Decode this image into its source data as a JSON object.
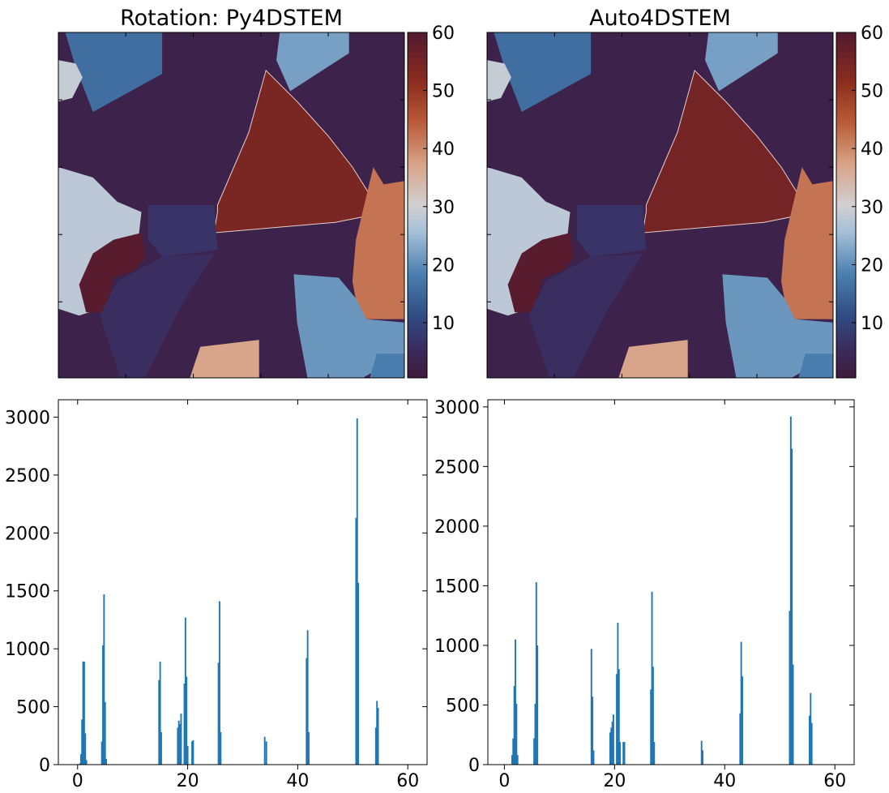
{
  "chart_data": [
    {
      "type": "heatmap",
      "title": "Rotation: Py4DSTEM",
      "colorbar": {
        "ticks": [
          10,
          20,
          30,
          40,
          50,
          60
        ],
        "range": [
          0.5,
          60
        ]
      },
      "regions": [
        {
          "name": "background",
          "value": 3
        },
        {
          "name": "top-left-blue",
          "value": 16
        },
        {
          "name": "top-center-light-blue",
          "value": 22
        },
        {
          "name": "left-edge-gray",
          "value": 29
        },
        {
          "name": "central-triangle",
          "value": 54
        },
        {
          "name": "left-gray",
          "value": 28
        },
        {
          "name": "left-dark-red",
          "value": 59
        },
        {
          "name": "center-dark-purple",
          "value": 7
        },
        {
          "name": "lower-dark-purple",
          "value": 6
        },
        {
          "name": "right-orange",
          "value": 42
        },
        {
          "name": "lower-right-light-blue",
          "value": 21
        },
        {
          "name": "bottom-tan",
          "value": 37
        },
        {
          "name": "bottom-right-mid-blue",
          "value": 18
        }
      ]
    },
    {
      "type": "heatmap",
      "title": "Auto4DSTEM",
      "colorbar": {
        "ticks": [
          10,
          20,
          30,
          40,
          50,
          60
        ],
        "range": [
          0.5,
          60
        ]
      },
      "regions": [
        {
          "name": "background",
          "value": 3
        },
        {
          "name": "top-left-blue",
          "value": 16
        },
        {
          "name": "top-center-light-blue",
          "value": 22
        },
        {
          "name": "left-edge-gray",
          "value": 29
        },
        {
          "name": "central-triangle",
          "value": 55
        },
        {
          "name": "left-gray",
          "value": 28
        },
        {
          "name": "left-dark-red",
          "value": 59
        },
        {
          "name": "center-dark-purple",
          "value": 7
        },
        {
          "name": "lower-dark-purple",
          "value": 6
        },
        {
          "name": "right-orange",
          "value": 42
        },
        {
          "name": "lower-right-light-blue",
          "value": 21
        },
        {
          "name": "bottom-tan",
          "value": 37
        },
        {
          "name": "bottom-right-mid-blue",
          "value": 18
        }
      ]
    },
    {
      "type": "bar",
      "xlim": [
        -3.5,
        63.5
      ],
      "ylim": [
        0,
        3150
      ],
      "xticks": [
        0,
        20,
        40,
        60
      ],
      "yticks": [
        0,
        500,
        1000,
        1500,
        2000,
        2500,
        3000
      ],
      "bin_width": 0.28,
      "peaks": [
        {
          "x": 0.4,
          "v": 10
        },
        {
          "x": 0.6,
          "v": 90
        },
        {
          "x": 0.8,
          "v": 390
        },
        {
          "x": 1.0,
          "v": 890
        },
        {
          "x": 1.2,
          "v": 890
        },
        {
          "x": 1.4,
          "v": 270
        },
        {
          "x": 1.6,
          "v": 40
        },
        {
          "x": 4.4,
          "v": 200
        },
        {
          "x": 4.6,
          "v": 1030
        },
        {
          "x": 4.8,
          "v": 1470
        },
        {
          "x": 5.0,
          "v": 540
        },
        {
          "x": 5.2,
          "v": 50
        },
        {
          "x": 14.8,
          "v": 730
        },
        {
          "x": 15.0,
          "v": 890
        },
        {
          "x": 15.2,
          "v": 280
        },
        {
          "x": 18.2,
          "v": 320
        },
        {
          "x": 18.4,
          "v": 380
        },
        {
          "x": 18.6,
          "v": 350
        },
        {
          "x": 18.8,
          "v": 440
        },
        {
          "x": 19.4,
          "v": 700
        },
        {
          "x": 19.6,
          "v": 1270
        },
        {
          "x": 19.8,
          "v": 760
        },
        {
          "x": 20.0,
          "v": 160
        },
        {
          "x": 20.8,
          "v": 200
        },
        {
          "x": 21.0,
          "v": 210
        },
        {
          "x": 25.6,
          "v": 880
        },
        {
          "x": 25.8,
          "v": 1410
        },
        {
          "x": 26.0,
          "v": 280
        },
        {
          "x": 34.0,
          "v": 240
        },
        {
          "x": 34.3,
          "v": 200
        },
        {
          "x": 41.6,
          "v": 920
        },
        {
          "x": 41.8,
          "v": 1160
        },
        {
          "x": 42.0,
          "v": 280
        },
        {
          "x": 50.6,
          "v": 2130
        },
        {
          "x": 50.8,
          "v": 2990
        },
        {
          "x": 51.0,
          "v": 1570
        },
        {
          "x": 54.2,
          "v": 320
        },
        {
          "x": 54.4,
          "v": 550
        },
        {
          "x": 54.6,
          "v": 490
        }
      ]
    },
    {
      "type": "bar",
      "xlim": [
        -3.0,
        63.5
      ],
      "ylim": [
        0,
        3060
      ],
      "xticks": [
        0,
        20,
        40,
        60
      ],
      "yticks": [
        0,
        500,
        1000,
        1500,
        2000,
        2500,
        3000
      ],
      "bin_width": 0.28,
      "peaks": [
        {
          "x": 1.4,
          "v": 80
        },
        {
          "x": 1.6,
          "v": 220
        },
        {
          "x": 1.8,
          "v": 660
        },
        {
          "x": 2.0,
          "v": 1050
        },
        {
          "x": 2.2,
          "v": 510
        },
        {
          "x": 2.4,
          "v": 80
        },
        {
          "x": 5.4,
          "v": 220
        },
        {
          "x": 5.6,
          "v": 510
        },
        {
          "x": 5.8,
          "v": 1530
        },
        {
          "x": 6.0,
          "v": 1000
        },
        {
          "x": 15.8,
          "v": 970
        },
        {
          "x": 16.0,
          "v": 570
        },
        {
          "x": 16.2,
          "v": 120
        },
        {
          "x": 19.2,
          "v": 270
        },
        {
          "x": 19.4,
          "v": 310
        },
        {
          "x": 19.6,
          "v": 360
        },
        {
          "x": 19.8,
          "v": 420
        },
        {
          "x": 20.4,
          "v": 760
        },
        {
          "x": 20.6,
          "v": 1190
        },
        {
          "x": 20.8,
          "v": 800
        },
        {
          "x": 21.0,
          "v": 190
        },
        {
          "x": 21.6,
          "v": 190
        },
        {
          "x": 21.8,
          "v": 190
        },
        {
          "x": 26.6,
          "v": 630
        },
        {
          "x": 26.8,
          "v": 1450
        },
        {
          "x": 27.0,
          "v": 820
        },
        {
          "x": 27.2,
          "v": 190
        },
        {
          "x": 35.8,
          "v": 200
        },
        {
          "x": 36.0,
          "v": 120
        },
        {
          "x": 42.8,
          "v": 430
        },
        {
          "x": 43.0,
          "v": 1030
        },
        {
          "x": 43.2,
          "v": 740
        },
        {
          "x": 51.8,
          "v": 1290
        },
        {
          "x": 52.0,
          "v": 2920
        },
        {
          "x": 52.2,
          "v": 2650
        },
        {
          "x": 52.4,
          "v": 840
        },
        {
          "x": 55.4,
          "v": 410
        },
        {
          "x": 55.6,
          "v": 600
        },
        {
          "x": 55.8,
          "v": 350
        }
      ]
    }
  ]
}
